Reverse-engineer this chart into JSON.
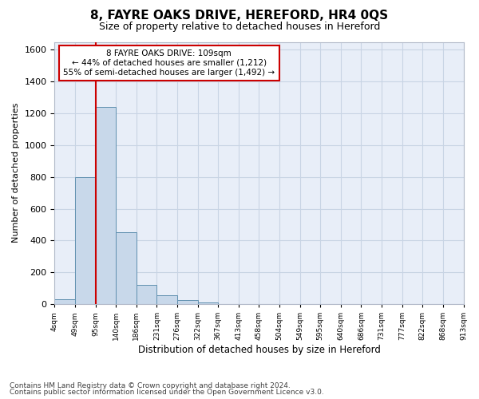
{
  "title": "8, FAYRE OAKS DRIVE, HEREFORD, HR4 0QS",
  "subtitle": "Size of property relative to detached houses in Hereford",
  "xlabel": "Distribution of detached houses by size in Hereford",
  "ylabel": "Number of detached properties",
  "bar_values": [
    30,
    800,
    1240,
    450,
    120,
    55,
    25,
    10,
    0,
    0,
    0,
    0,
    0,
    0,
    0,
    0,
    0,
    0,
    0,
    0
  ],
  "bar_labels": [
    "4sqm",
    "49sqm",
    "95sqm",
    "140sqm",
    "186sqm",
    "231sqm",
    "276sqm",
    "322sqm",
    "367sqm",
    "413sqm",
    "458sqm",
    "504sqm",
    "549sqm",
    "595sqm",
    "640sqm",
    "686sqm",
    "731sqm",
    "777sqm",
    "822sqm",
    "868sqm",
    "913sqm"
  ],
  "bar_color": "#c8d8ea",
  "bar_edge_color": "#6090b0",
  "bar_edge_width": 0.7,
  "vline_x": 2.0,
  "vline_color": "#cc0000",
  "vline_linewidth": 1.5,
  "annotation_text": "8 FAYRE OAKS DRIVE: 109sqm\n← 44% of detached houses are smaller (1,212)\n55% of semi-detached houses are larger (1,492) →",
  "annotation_box_color": "#ffffff",
  "annotation_box_edge": "#cc0000",
  "ylim": [
    0,
    1650
  ],
  "yticks": [
    0,
    200,
    400,
    600,
    800,
    1000,
    1200,
    1400,
    1600
  ],
  "grid_color": "#c8d4e4",
  "background_color": "#e8eef8",
  "footer_line1": "Contains HM Land Registry data © Crown copyright and database right 2024.",
  "footer_line2": "Contains public sector information licensed under the Open Government Licence v3.0."
}
